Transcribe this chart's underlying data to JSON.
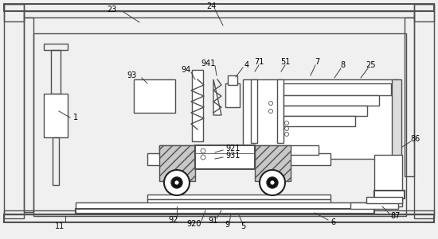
{
  "bg_color": "#f0f0f0",
  "line_color": "#505050",
  "dark_color": "#222222",
  "lw_main": 1.0,
  "lw_thick": 1.5,
  "lw_thin": 0.6,
  "font_size": 7.0
}
